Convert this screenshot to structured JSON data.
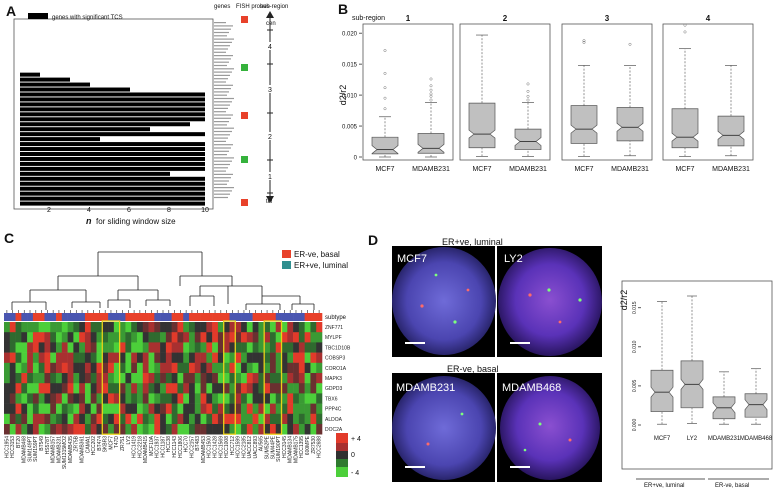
{
  "panels": {
    "A": "A",
    "B": "B",
    "C": "C",
    "D": "D"
  },
  "panel_a": {
    "legend": "genes with significant TCS",
    "col_genes": "genes",
    "col_fish": "FISH probes",
    "col_subregion": "sub-region",
    "cen": "cen",
    "tel": "tel",
    "subregions": [
      "4",
      "3",
      "2",
      "1"
    ],
    "x_ticks": [
      "2",
      "4",
      "6",
      "8",
      "10"
    ],
    "xlabel_n": "n",
    "xlabel_rest": "for sliding window size",
    "fish_colors": [
      "#e8412a",
      "#35b23c",
      "#e8412a",
      "#35b23c",
      "#e8412a"
    ],
    "bar_color": "#000000"
  },
  "panel_b": {
    "title": "sub-region",
    "ylabel": "d2/r2",
    "yticks": [
      "0",
      "0.005",
      "0.010",
      "0.015",
      "0.020"
    ],
    "subregions": [
      "1",
      "2",
      "3",
      "4"
    ],
    "groups": [
      "MCF7",
      "MDAMB231"
    ],
    "box_color": "#c0c0c0"
  },
  "panel_c": {
    "legend": [
      {
        "label": "ER-ve, basal",
        "color": "#e8412a"
      },
      {
        "label": "ER+ve, luminal",
        "color": "#2f8f8f"
      }
    ],
    "subtype_label": "subtype",
    "genes": [
      "ZNF771",
      "MYLPF",
      "TBC1D10B",
      "COBSP3",
      "CORO1A",
      "MAPK3",
      "GDPD3",
      "TBX6",
      "PPP4C",
      "ALDOA",
      "DOC2A"
    ],
    "colorkey": {
      "high": "+ 4",
      "mid": "0",
      "low": "- 4"
    },
    "cell_lines": [
      "HCC1954",
      "HCC3153",
      "BT20",
      "MDAMB468",
      "SUM149PT",
      "SUM159PT",
      "BT549",
      "HS578T",
      "MDAMB157",
      "MDAMB231",
      "SUM1315MO2",
      "MDAMB435",
      "ZR75B",
      "MDAMB361",
      "CAMA1",
      "HCC202",
      "BT474",
      "SKBR3",
      "MCF7",
      "T47D",
      "ZR751",
      "LY2",
      "HCC1419",
      "HCC2218",
      "MDAMB415",
      "MCF10A",
      "HCC1937",
      "HCC1187",
      "HCC38",
      "HCC1143",
      "HCC1806",
      "HCC70",
      "HCC2157",
      "BT483",
      "MDAMB453",
      "HCC1500",
      "HCC1428",
      "HCC1569",
      "HCC1008",
      "HCC712",
      "HCC1599",
      "HCC2185",
      "UACC812",
      "UACC893",
      "AU565",
      "SUM52PE",
      "SUM44PE",
      "SUM190PT",
      "HCC3145",
      "MDAMB134",
      "MDAMB175",
      "HCC1395",
      "600MPE",
      "ZR7530",
      "HCC2688"
    ]
  },
  "panel_d": {
    "header_top": "ER+ve, luminal",
    "header_bottom": "ER-ve, basal",
    "images": [
      "MCF7",
      "LY2",
      "MDAMB231",
      "MDAMB468"
    ],
    "ylabel": "d2/r2",
    "yticks": [
      "0.000",
      "0.005",
      "0.010",
      "0.015"
    ],
    "groups": [
      "MCF7",
      "LY2",
      "MDAMB231",
      "MDAMB468"
    ],
    "group_luminal": "ER+ve, luminal",
    "group_basal": "ER-ve, basal"
  },
  "chart_data": [
    {
      "type": "box",
      "panel": "B",
      "ylabel": "d2/r2",
      "ylim": [
        0,
        0.021
      ],
      "facets": [
        "1",
        "2",
        "3",
        "4"
      ],
      "groups": [
        "MCF7",
        "MDAMB231"
      ],
      "boxes": [
        {
          "facet": "1",
          "group": "MCF7",
          "whisker_low": 0.0,
          "q1": 0.0005,
          "median": 0.0012,
          "q3": 0.0032,
          "whisker_high": 0.0065,
          "outliers": [
            0.0078,
            0.0095,
            0.0112,
            0.0135,
            0.0172
          ]
        },
        {
          "facet": "1",
          "group": "MDAMB231",
          "whisker_low": 0.0,
          "q1": 0.0006,
          "median": 0.0014,
          "q3": 0.0038,
          "whisker_high": 0.0088,
          "outliers": [
            0.0092,
            0.0098,
            0.0102,
            0.0108,
            0.0115,
            0.0126
          ]
        },
        {
          "facet": "2",
          "group": "MCF7",
          "whisker_low": 0.0001,
          "q1": 0.0015,
          "median": 0.0037,
          "q3": 0.0087,
          "whisker_high": 0.0197,
          "outliers": []
        },
        {
          "facet": "2",
          "group": "MDAMB231",
          "whisker_low": 0.0001,
          "q1": 0.0012,
          "median": 0.0025,
          "q3": 0.0045,
          "whisker_high": 0.0088,
          "outliers": [
            0.0092,
            0.0098,
            0.0106,
            0.0118
          ]
        },
        {
          "facet": "3",
          "group": "MCF7",
          "whisker_low": 0.0001,
          "q1": 0.0022,
          "median": 0.0045,
          "q3": 0.0083,
          "whisker_high": 0.0148,
          "outliers": [
            0.0185,
            0.0188
          ]
        },
        {
          "facet": "3",
          "group": "MDAMB231",
          "whisker_low": 0.0002,
          "q1": 0.0026,
          "median": 0.0048,
          "q3": 0.008,
          "whisker_high": 0.0148,
          "outliers": [
            0.0182
          ]
        },
        {
          "facet": "4",
          "group": "MCF7",
          "whisker_low": 0.0001,
          "q1": 0.0015,
          "median": 0.0032,
          "q3": 0.0078,
          "whisker_high": 0.0175,
          "outliers": [
            0.0202,
            0.0213
          ]
        },
        {
          "facet": "4",
          "group": "MDAMB231",
          "whisker_low": 0.0002,
          "q1": 0.0018,
          "median": 0.0035,
          "q3": 0.0066,
          "whisker_high": 0.0148,
          "outliers": []
        }
      ]
    },
    {
      "type": "box",
      "panel": "D",
      "ylabel": "d2/r2",
      "ylim": [
        0,
        0.0165
      ],
      "groups": [
        "MCF7",
        "LY2",
        "MDAMB231",
        "MDAMB468"
      ],
      "boxes": [
        {
          "group": "MCF7",
          "whisker_low": 0.0001,
          "q1": 0.0017,
          "median": 0.0042,
          "q3": 0.007,
          "whisker_high": 0.0158
        },
        {
          "group": "LY2",
          "whisker_low": 0.0002,
          "q1": 0.0022,
          "median": 0.0052,
          "q3": 0.0082,
          "whisker_high": 0.0165
        },
        {
          "group": "MDAMB231",
          "whisker_low": 0.0001,
          "q1": 0.0008,
          "median": 0.0022,
          "q3": 0.0036,
          "whisker_high": 0.0068
        },
        {
          "group": "MDAMB468",
          "whisker_low": 0.0001,
          "q1": 0.001,
          "median": 0.0026,
          "q3": 0.004,
          "whisker_high": 0.0072
        }
      ]
    }
  ]
}
